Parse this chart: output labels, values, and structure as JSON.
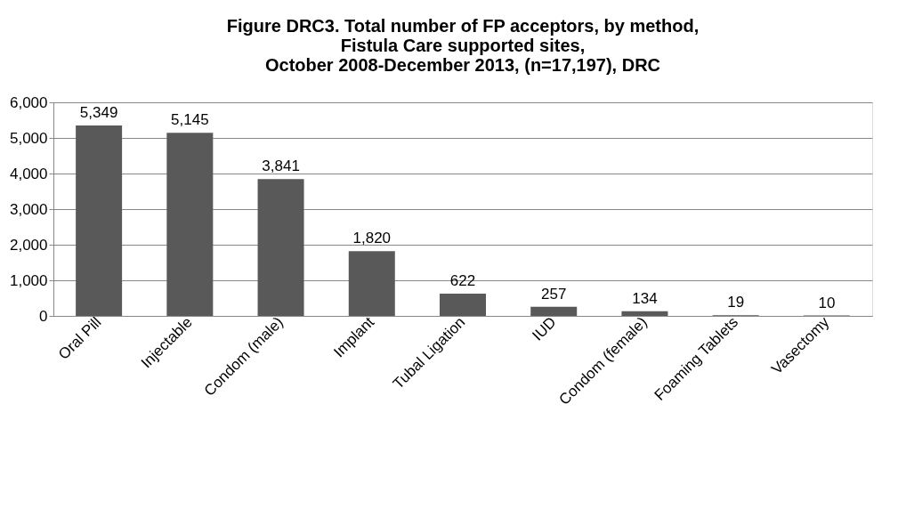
{
  "chart_data": {
    "type": "bar",
    "title": [
      "Figure DRC3. Total number of FP acceptors, by method,",
      "Fistula Care supported sites,",
      "October 2008-December 2013, (n=17,197), DRC"
    ],
    "categories": [
      "Oral Pill",
      "Injectable",
      "Condom (male)",
      "Implant",
      "Tubal Ligation",
      "IUD",
      "Condom (female)",
      "Foaming Tablets",
      "Vasectomy"
    ],
    "values": [
      5349,
      5145,
      3841,
      1820,
      622,
      257,
      134,
      19,
      10
    ],
    "value_labels": [
      "5,349",
      "5,145",
      "3,841",
      "1,820",
      "622",
      "257",
      "134",
      "19",
      "10"
    ],
    "color": "#595959",
    "ylim": [
      0,
      6000
    ],
    "yticks": [
      {
        "value": 0,
        "label": "0"
      },
      {
        "value": 1000,
        "label": "1,000"
      },
      {
        "value": 2000,
        "label": "2,000"
      },
      {
        "value": 3000,
        "label": "3,000"
      },
      {
        "value": 4000,
        "label": "4,000"
      },
      {
        "value": 5000,
        "label": "5,000"
      },
      {
        "value": 6000,
        "label": "6,000"
      }
    ],
    "grid": "y"
  }
}
